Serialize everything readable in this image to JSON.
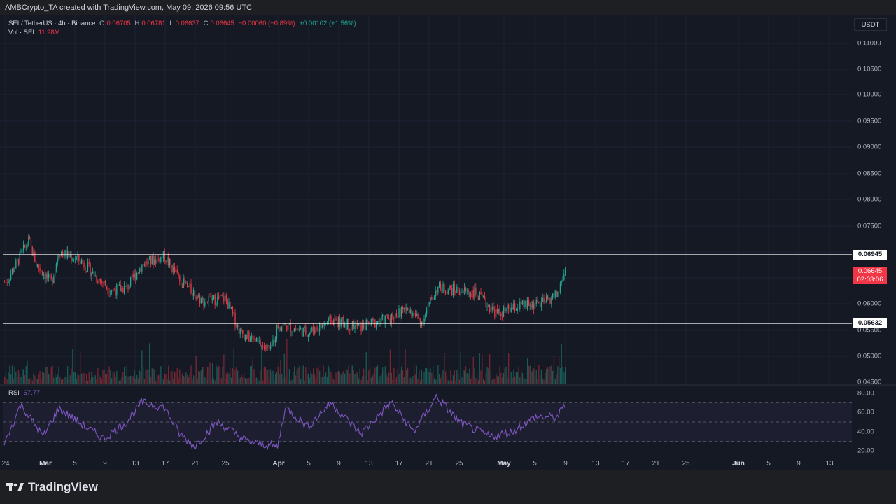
{
  "header": {
    "created_text": "AMBCrypto_TA created with TradingView.com, May 09, 2026 09:56 UTC"
  },
  "legend": {
    "symbol": "SEI / TetherUS · 4h · Binance",
    "open_label": "O",
    "open": "0.06705",
    "high_label": "H",
    "high": "0.06781",
    "low_label": "L",
    "low": "0.06637",
    "close_label": "C",
    "close": "0.06645",
    "change": "−0.00060 (−0.89%)",
    "range_change": "+0.00102 (+1.56%)",
    "volume_label": "Vol · SEI",
    "volume": "11.98M"
  },
  "currency": "USDT",
  "price_axis": {
    "ticks": [
      "0.11000",
      "0.10500",
      "0.10000",
      "0.09500",
      "0.09000",
      "0.08500",
      "0.08000",
      "0.07500",
      "0.06000",
      "0.05500",
      "0.05000",
      "0.04500"
    ]
  },
  "levels": {
    "resistance": "0.06945",
    "support": "0.05632"
  },
  "last_price": {
    "price": "0.06645",
    "countdown": "02:03:06"
  },
  "rsi": {
    "label": "RSI",
    "value": "67.77",
    "ticks": [
      "80.00",
      "60.00",
      "40.00",
      "20.00"
    ]
  },
  "time_axis": {
    "labels": [
      "24",
      "Mar",
      "5",
      "9",
      "13",
      "17",
      "21",
      "25",
      "Apr",
      "5",
      "9",
      "13",
      "17",
      "21",
      "25",
      "May",
      "5",
      "9",
      "13",
      "17",
      "21",
      "25",
      "Jun",
      "5",
      "9",
      "13"
    ]
  },
  "footer": {
    "brand": "TradingView"
  },
  "colors": {
    "up": "#22ab94",
    "down": "#f23645",
    "rsi_line": "#7e57c2",
    "level_line": "#ffffff"
  },
  "chart_data": {
    "type": "candlestick",
    "symbol": "SEI / TetherUS",
    "interval": "4h",
    "exchange": "Binance",
    "y_range": [
      0.045,
      0.1125
    ],
    "horizontal_levels": [
      0.06945,
      0.05632
    ],
    "price_path": [
      {
        "date": "2026-02-24",
        "close": 0.064
      },
      {
        "date": "2026-02-27",
        "close": 0.072
      },
      {
        "date": "2026-02-28",
        "close": 0.0675
      },
      {
        "date": "2026-03-02",
        "close": 0.064
      },
      {
        "date": "2026-03-03",
        "close": 0.07
      },
      {
        "date": "2026-03-06",
        "close": 0.068
      },
      {
        "date": "2026-03-08",
        "close": 0.065
      },
      {
        "date": "2026-03-10",
        "close": 0.0625
      },
      {
        "date": "2026-03-12",
        "close": 0.063
      },
      {
        "date": "2026-03-14",
        "close": 0.0675
      },
      {
        "date": "2026-03-17",
        "close": 0.069
      },
      {
        "date": "2026-03-19",
        "close": 0.0645
      },
      {
        "date": "2026-03-22",
        "close": 0.0605
      },
      {
        "date": "2026-03-25",
        "close": 0.061
      },
      {
        "date": "2026-03-27",
        "close": 0.0545
      },
      {
        "date": "2026-03-31",
        "close": 0.051
      },
      {
        "date": "2026-04-01",
        "close": 0.056
      },
      {
        "date": "2026-04-05",
        "close": 0.0545
      },
      {
        "date": "2026-04-08",
        "close": 0.0568
      },
      {
        "date": "2026-04-12",
        "close": 0.0555
      },
      {
        "date": "2026-04-16",
        "close": 0.0575
      },
      {
        "date": "2026-04-18",
        "close": 0.059
      },
      {
        "date": "2026-04-20",
        "close": 0.0565
      },
      {
        "date": "2026-04-22",
        "close": 0.063
      },
      {
        "date": "2026-04-25",
        "close": 0.0625
      },
      {
        "date": "2026-04-27",
        "close": 0.062
      },
      {
        "date": "2026-04-30",
        "close": 0.058
      },
      {
        "date": "2026-05-03",
        "close": 0.0595
      },
      {
        "date": "2026-05-06",
        "close": 0.06
      },
      {
        "date": "2026-05-08",
        "close": 0.062
      },
      {
        "date": "2026-05-09",
        "close": 0.06645
      }
    ],
    "rsi_path": [
      {
        "date": "2026-02-24",
        "value": 30
      },
      {
        "date": "2026-02-26",
        "value": 68
      },
      {
        "date": "2026-03-01",
        "value": 35
      },
      {
        "date": "2026-03-03",
        "value": 64
      },
      {
        "date": "2026-03-06",
        "value": 48
      },
      {
        "date": "2026-03-09",
        "value": 33
      },
      {
        "date": "2026-03-12",
        "value": 50
      },
      {
        "date": "2026-03-14",
        "value": 70
      },
      {
        "date": "2026-03-17",
        "value": 65
      },
      {
        "date": "2026-03-19",
        "value": 38
      },
      {
        "date": "2026-03-21",
        "value": 25
      },
      {
        "date": "2026-03-24",
        "value": 50
      },
      {
        "date": "2026-03-28",
        "value": 30
      },
      {
        "date": "2026-04-01",
        "value": 25
      },
      {
        "date": "2026-04-02",
        "value": 65
      },
      {
        "date": "2026-04-05",
        "value": 45
      },
      {
        "date": "2026-04-08",
        "value": 70
      },
      {
        "date": "2026-04-12",
        "value": 38
      },
      {
        "date": "2026-04-16",
        "value": 70
      },
      {
        "date": "2026-04-19",
        "value": 40
      },
      {
        "date": "2026-04-22",
        "value": 76
      },
      {
        "date": "2026-04-25",
        "value": 50
      },
      {
        "date": "2026-04-29",
        "value": 35
      },
      {
        "date": "2026-05-02",
        "value": 40
      },
      {
        "date": "2026-05-05",
        "value": 55
      },
      {
        "date": "2026-05-08",
        "value": 55
      },
      {
        "date": "2026-05-09",
        "value": 68
      }
    ],
    "rsi_bands": [
      30,
      50,
      70
    ]
  }
}
